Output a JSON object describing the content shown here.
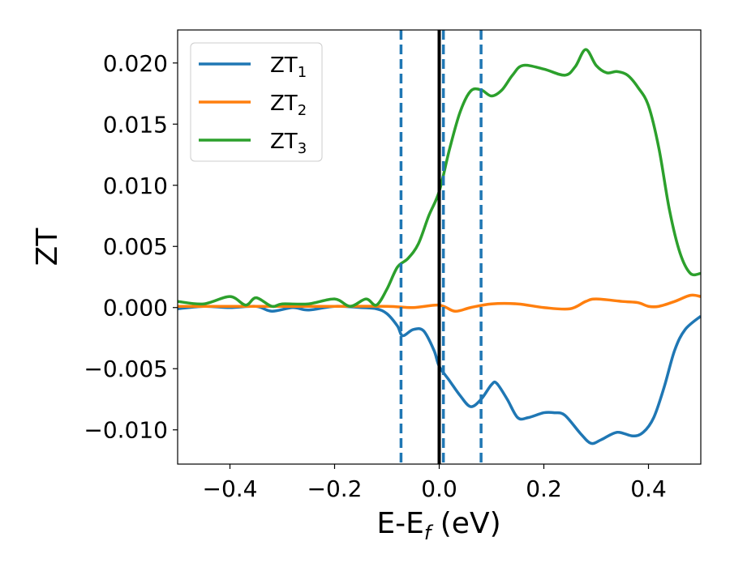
{
  "chart_data": {
    "type": "line",
    "title": "",
    "xlabel": "E-E",
    "xlabel_sub": "f",
    "xlabel_unit": " (eV)",
    "ylabel": "ZT",
    "xlim": [
      -0.5,
      0.5
    ],
    "ylim": [
      -0.0128,
      0.0227
    ],
    "xticks": [
      -0.4,
      -0.2,
      0.0,
      0.2,
      0.4
    ],
    "xtick_labels": [
      "−0.4",
      "−0.2",
      "0.0",
      "0.2",
      "0.4"
    ],
    "yticks": [
      -0.01,
      -0.005,
      0.0,
      0.005,
      0.01,
      0.015,
      0.02
    ],
    "ytick_labels": [
      "−0.010",
      "−0.005",
      "0.000",
      "0.005",
      "0.010",
      "0.015",
      "0.020"
    ],
    "legend_position": "upper-left",
    "series": [
      {
        "name": "ZT",
        "sub": "1",
        "color": "#1f77b4",
        "x": [
          -0.5,
          -0.45,
          -0.4,
          -0.35,
          -0.32,
          -0.28,
          -0.25,
          -0.2,
          -0.15,
          -0.12,
          -0.1,
          -0.08,
          -0.07,
          -0.05,
          -0.03,
          -0.01,
          0,
          0.02,
          0.04,
          0.06,
          0.08,
          0.1,
          0.11,
          0.13,
          0.15,
          0.17,
          0.2,
          0.22,
          0.24,
          0.27,
          0.29,
          0.31,
          0.34,
          0.37,
          0.39,
          0.41,
          0.43,
          0.45,
          0.47,
          0.5
        ],
        "y": [
          -0.0001,
          0.0001,
          0.0,
          0.0001,
          -0.0003,
          0.0,
          -0.0002,
          0.0001,
          0.0,
          -0.0001,
          -0.0005,
          -0.0015,
          -0.0023,
          -0.0018,
          -0.0019,
          -0.0035,
          -0.0048,
          -0.006,
          -0.0072,
          -0.0081,
          -0.0075,
          -0.0063,
          -0.0062,
          -0.0075,
          -0.009,
          -0.009,
          -0.0086,
          -0.0086,
          -0.0088,
          -0.0103,
          -0.0111,
          -0.0108,
          -0.0102,
          -0.0105,
          -0.0102,
          -0.009,
          -0.0065,
          -0.0035,
          -0.0018,
          -0.0007
        ]
      },
      {
        "name": "ZT",
        "sub": "2",
        "color": "#ff7f0e",
        "x": [
          -0.5,
          -0.4,
          -0.3,
          -0.2,
          -0.1,
          -0.05,
          0,
          0.03,
          0.06,
          0.1,
          0.15,
          0.2,
          0.25,
          0.28,
          0.3,
          0.35,
          0.38,
          0.4,
          0.42,
          0.45,
          0.48,
          0.5
        ],
        "y": [
          0.0001,
          0.0001,
          0.0001,
          0.0001,
          0.0001,
          0.0,
          0.0002,
          -0.0003,
          0.0,
          0.0003,
          0.0003,
          0.0,
          -0.0001,
          0.0005,
          0.0007,
          0.0005,
          0.0004,
          0.0001,
          0.0001,
          0.0005,
          0.001,
          0.0009
        ]
      },
      {
        "name": "ZT",
        "sub": "3",
        "color": "#2ca02c",
        "x": [
          -0.5,
          -0.45,
          -0.4,
          -0.37,
          -0.35,
          -0.32,
          -0.3,
          -0.25,
          -0.2,
          -0.17,
          -0.14,
          -0.12,
          -0.1,
          -0.08,
          -0.06,
          -0.04,
          -0.02,
          0,
          0.02,
          0.04,
          0.06,
          0.08,
          0.1,
          0.12,
          0.14,
          0.16,
          0.2,
          0.24,
          0.26,
          0.28,
          0.3,
          0.32,
          0.34,
          0.36,
          0.38,
          0.4,
          0.42,
          0.44,
          0.46,
          0.48,
          0.5
        ],
        "y": [
          0.0005,
          0.0003,
          0.0009,
          0.0002,
          0.0008,
          0.0001,
          0.0003,
          0.0003,
          0.0007,
          0.0001,
          0.0007,
          0.0002,
          0.0015,
          0.0033,
          0.004,
          0.0052,
          0.0075,
          0.0095,
          0.013,
          0.016,
          0.0177,
          0.0178,
          0.0173,
          0.0178,
          0.019,
          0.0198,
          0.0195,
          0.019,
          0.0197,
          0.0211,
          0.0198,
          0.0192,
          0.0193,
          0.019,
          0.018,
          0.0165,
          0.013,
          0.008,
          0.0045,
          0.0028,
          0.0028
        ]
      }
    ],
    "vlines": [
      {
        "x": -0.073,
        "style": "dashed",
        "color": "#1f77b4"
      },
      {
        "x": 0.008,
        "style": "dashed",
        "color": "#1f77b4"
      },
      {
        "x": 0.08,
        "style": "dashed",
        "color": "#1f77b4"
      },
      {
        "x": 0.0,
        "style": "solid",
        "color": "#000000"
      }
    ]
  }
}
